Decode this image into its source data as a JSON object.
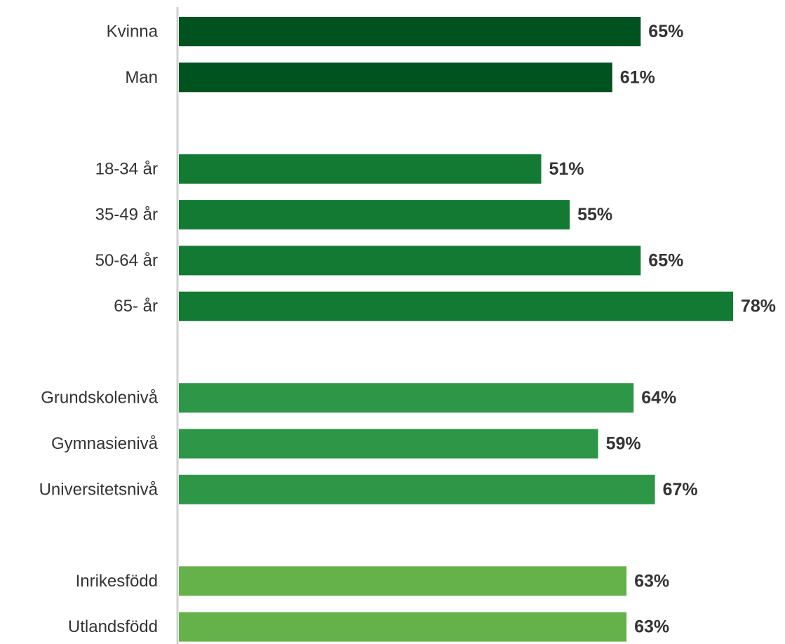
{
  "chart_data": {
    "type": "bar",
    "orientation": "horizontal",
    "title": "",
    "xlabel": "",
    "ylabel": "",
    "xlim": [
      0,
      80
    ],
    "grid": false,
    "legend": "none",
    "value_suffix": "%",
    "groups": [
      {
        "color": "#00521f",
        "bars": [
          {
            "category": "Kvinna",
            "value": 65,
            "label": "65%"
          },
          {
            "category": "Man",
            "value": 61,
            "label": "61%"
          }
        ]
      },
      {
        "color": "#137a34",
        "bars": [
          {
            "category": "18-34 år",
            "value": 51,
            "label": "51%"
          },
          {
            "category": "35-49 år",
            "value": 55,
            "label": "55%"
          },
          {
            "category": "50-64 år",
            "value": 65,
            "label": "65%"
          },
          {
            "category": "65- år",
            "value": 78,
            "label": "78%"
          }
        ]
      },
      {
        "color": "#2e9647",
        "bars": [
          {
            "category": "Grundskolenivå",
            "value": 64,
            "label": "64%"
          },
          {
            "category": "Gymnasienivå",
            "value": 59,
            "label": "59%"
          },
          {
            "category": "Universitetsnivå",
            "value": 67,
            "label": "67%"
          }
        ]
      },
      {
        "color": "#66b24a",
        "bars": [
          {
            "category": "Inrikesfödd",
            "value": 63,
            "label": "63%"
          },
          {
            "category": "Utlandsfödd",
            "value": 63,
            "label": "63%"
          }
        ]
      }
    ]
  }
}
